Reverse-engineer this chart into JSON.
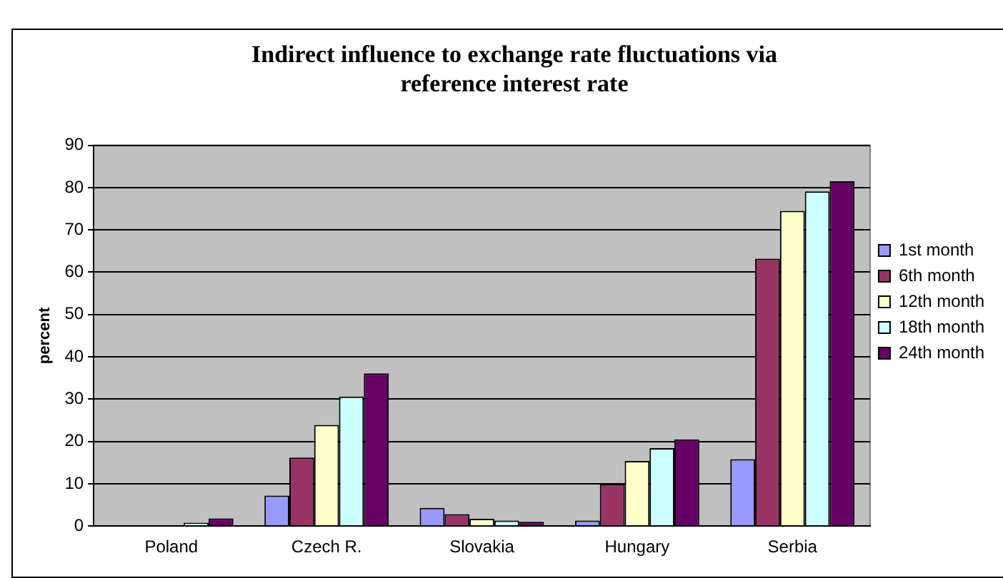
{
  "chart_data": {
    "type": "bar",
    "title": [
      "Indirect influence to exchange rate fluctuations via",
      "reference interest rate"
    ],
    "ylabel": "percent",
    "categories": [
      "Poland",
      "Czech R.",
      "Slovakia",
      "Hungary",
      "Serbia"
    ],
    "series": [
      {
        "name": "1st month",
        "color": "#9999ff",
        "values": [
          null,
          7.2,
          4.3,
          1.3,
          15.8
        ]
      },
      {
        "name": "6th month",
        "color": "#993366",
        "values": [
          null,
          16.2,
          2.8,
          9.9,
          63.2
        ]
      },
      {
        "name": "12th month",
        "color": "#ffffcc",
        "values": [
          null,
          23.9,
          1.7,
          15.4,
          74.5
        ]
      },
      {
        "name": "18th month",
        "color": "#ccffff",
        "values": [
          0.8,
          30.6,
          1.3,
          18.4,
          79.1
        ]
      },
      {
        "name": "24th month",
        "color": "#660066",
        "values": [
          1.8,
          36.1,
          1.0,
          20.5,
          81.5
        ]
      }
    ],
    "ylim": [
      0,
      90
    ],
    "yticks": [
      0,
      10,
      20,
      30,
      40,
      50,
      60,
      70,
      80,
      90
    ],
    "grid": "y",
    "legend": "right"
  }
}
